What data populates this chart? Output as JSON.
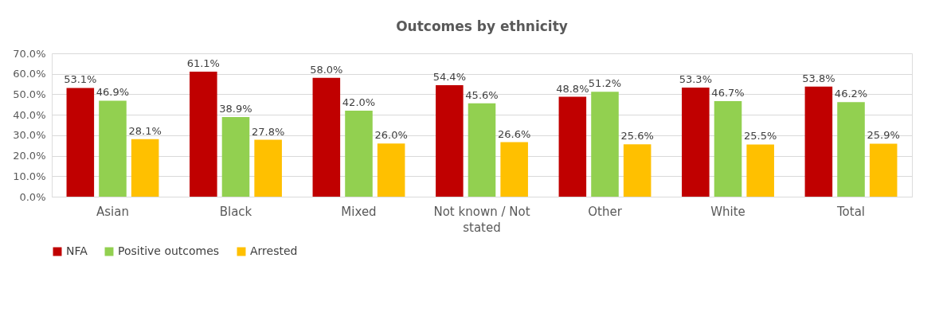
{
  "chart_data": {
    "type": "bar",
    "title": "Outcomes by ethnicity",
    "categories": [
      "Asian",
      "Black",
      "Mixed",
      "Not known / Not stated",
      "Other",
      "White",
      "Total"
    ],
    "series": [
      {
        "name": "NFA",
        "color": "#c00000",
        "values": [
          53.1,
          61.1,
          58.0,
          54.4,
          48.8,
          53.3,
          53.8
        ],
        "value_labels": [
          "53.1%",
          "61.1%",
          "58.0%",
          "54.4%",
          "48.8%",
          "53.3%",
          "53.8%"
        ]
      },
      {
        "name": "Positive outcomes",
        "color": "#92d050",
        "values": [
          46.9,
          38.9,
          42.0,
          45.6,
          51.2,
          46.7,
          46.2
        ],
        "value_labels": [
          "46.9%",
          "38.9%",
          "42.0%",
          "45.6%",
          "51.2%",
          "46.7%",
          "46.2%"
        ]
      },
      {
        "name": "Arrested",
        "color": "#ffc000",
        "values": [
          28.1,
          27.8,
          26.0,
          26.6,
          25.6,
          25.5,
          25.9
        ],
        "value_labels": [
          "28.1%",
          "27.8%",
          "26.0%",
          "26.6%",
          "25.6%",
          "25.5%",
          "25.9%"
        ]
      }
    ],
    "ylim": [
      0,
      70
    ],
    "yticks": [
      {
        "value": 0,
        "label": "0.0%"
      },
      {
        "value": 10,
        "label": "10.0%"
      },
      {
        "value": 20,
        "label": "20.0%"
      },
      {
        "value": 30,
        "label": "30.0%"
      },
      {
        "value": 40,
        "label": "40.0%"
      },
      {
        "value": 50,
        "label": "50.0%"
      },
      {
        "value": 60,
        "label": "60.0%"
      },
      {
        "value": 70,
        "label": "70.0%"
      }
    ],
    "grid": "y",
    "legend": "bottom"
  }
}
